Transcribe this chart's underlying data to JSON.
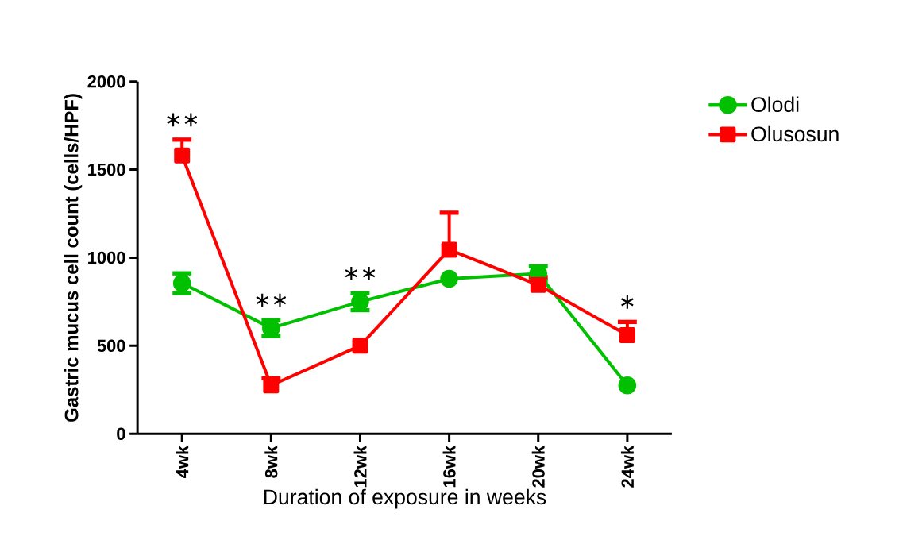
{
  "chart_data": {
    "type": "line",
    "xlabel": "Duration of exposure in weeks",
    "ylabel": "Gastric mucus cell count (cells/HPF)",
    "categories": [
      "4wk",
      "8wk",
      "12wk",
      "16wk",
      "20wk",
      "24wk"
    ],
    "series": [
      {
        "name": "Olodi",
        "color": "#00c000",
        "marker": "circle",
        "values": [
          855,
          600,
          750,
          880,
          910,
          275
        ],
        "errors": [
          56,
          45,
          48,
          null,
          40,
          null
        ]
      },
      {
        "name": "Olusosun",
        "color": "#ff0000",
        "marker": "square",
        "values": [
          1580,
          275,
          500,
          1045,
          845,
          560
        ],
        "errors": [
          [
            1580,
            1670
          ],
          [
            275,
            315
          ],
          null,
          [
            1045,
            1255
          ],
          [
            845,
            890
          ],
          [
            560,
            635
          ]
        ]
      }
    ],
    "ylim": [
      0,
      2000
    ],
    "yticks": [
      0,
      500,
      1000,
      1500,
      2000
    ],
    "grid": false,
    "legend": "right",
    "annotations": [
      "∗∗",
      "∗∗",
      "∗∗",
      "∗"
    ]
  }
}
